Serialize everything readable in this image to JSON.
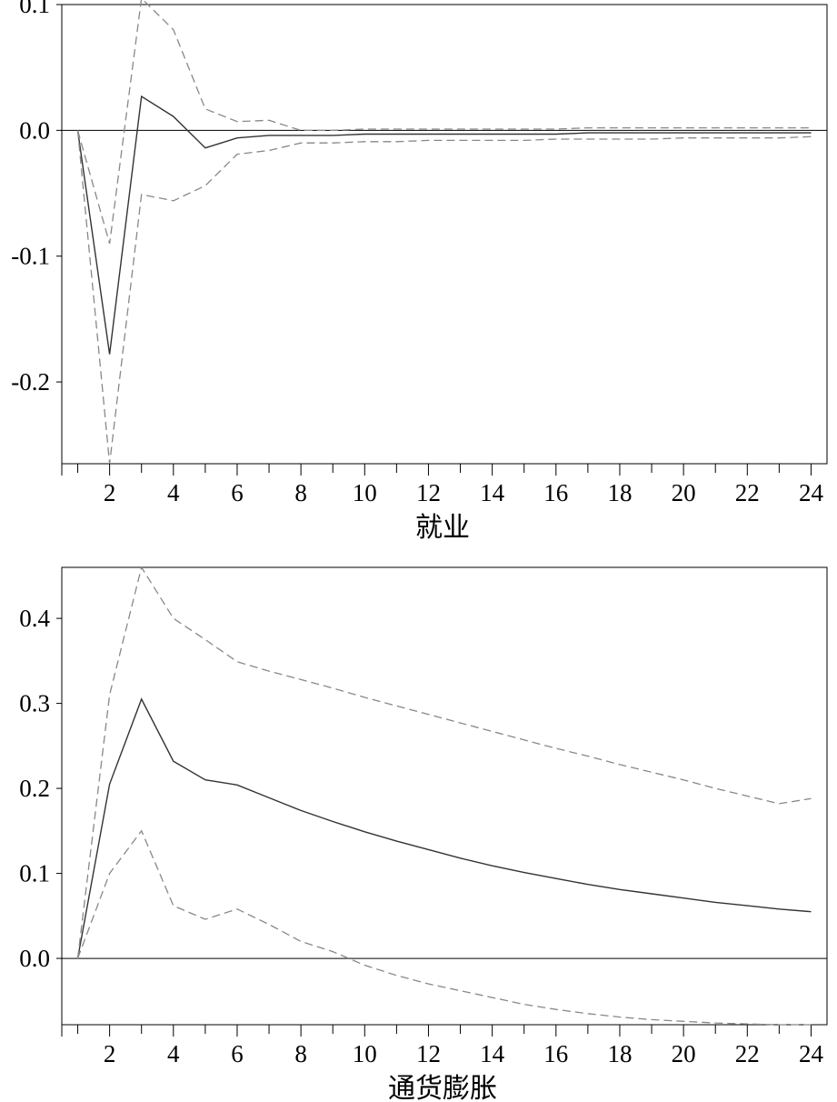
{
  "chart_data": [
    {
      "type": "line",
      "title": "",
      "xlabel": "就业",
      "ylabel": "",
      "xlim": [
        0.5,
        24.5
      ],
      "ylim": [
        -0.265,
        0.1
      ],
      "x_ticks": [
        2,
        4,
        6,
        8,
        10,
        12,
        14,
        16,
        18,
        20,
        22,
        24
      ],
      "y_ticks": [
        0.1,
        0.0,
        -0.1,
        -0.2
      ],
      "y_tick_labels": [
        "0.1",
        "0.0",
        "-0.1",
        "-0.2"
      ],
      "zero_line": true,
      "grid": false,
      "x": [
        1,
        2,
        3,
        4,
        5,
        6,
        7,
        8,
        9,
        10,
        11,
        12,
        13,
        14,
        15,
        16,
        17,
        18,
        19,
        20,
        21,
        22,
        23,
        24
      ],
      "series": [
        {
          "style": "solid",
          "color": "#333333",
          "values": [
            0.0,
            -0.178,
            0.027,
            0.011,
            -0.014,
            -0.006,
            -0.004,
            -0.004,
            -0.004,
            -0.003,
            -0.003,
            -0.003,
            -0.003,
            -0.003,
            -0.003,
            -0.003,
            -0.002,
            -0.002,
            -0.002,
            -0.002,
            -0.002,
            -0.002,
            -0.002,
            -0.002
          ]
        },
        {
          "style": "dashed",
          "color": "#888888",
          "values": [
            0.0,
            -0.09,
            0.105,
            0.08,
            0.017,
            0.007,
            0.008,
            0.0,
            0.0,
            0.001,
            0.001,
            0.001,
            0.001,
            0.001,
            0.001,
            0.001,
            0.002,
            0.002,
            0.002,
            0.002,
            0.002,
            0.002,
            0.002,
            0.002
          ]
        },
        {
          "style": "dashed",
          "color": "#888888",
          "values": [
            0.0,
            -0.265,
            -0.051,
            -0.056,
            -0.044,
            -0.019,
            -0.016,
            -0.01,
            -0.01,
            -0.009,
            -0.009,
            -0.008,
            -0.008,
            -0.008,
            -0.008,
            -0.007,
            -0.007,
            -0.007,
            -0.007,
            -0.006,
            -0.006,
            -0.006,
            -0.006,
            -0.005
          ]
        }
      ]
    },
    {
      "type": "line",
      "title": "",
      "xlabel": "通货膨胀",
      "ylabel": "",
      "xlim": [
        0.5,
        24.5
      ],
      "ylim": [
        -0.078,
        0.46
      ],
      "x_ticks": [
        2,
        4,
        6,
        8,
        10,
        12,
        14,
        16,
        18,
        20,
        22,
        24
      ],
      "y_ticks": [
        0.4,
        0.3,
        0.2,
        0.1,
        0.0
      ],
      "y_tick_labels": [
        "0.4",
        "0.3",
        "0.2",
        "0.1",
        "0.0"
      ],
      "zero_line": true,
      "grid": false,
      "x": [
        1,
        2,
        3,
        4,
        5,
        6,
        7,
        8,
        9,
        10,
        11,
        12,
        13,
        14,
        15,
        16,
        17,
        18,
        19,
        20,
        21,
        22,
        23,
        24
      ],
      "series": [
        {
          "style": "solid",
          "color": "#333333",
          "values": [
            0.0,
            0.205,
            0.305,
            0.232,
            0.21,
            0.204,
            0.189,
            0.174,
            0.161,
            0.149,
            0.138,
            0.128,
            0.118,
            0.109,
            0.101,
            0.094,
            0.087,
            0.081,
            0.076,
            0.071,
            0.066,
            0.062,
            0.058,
            0.055
          ]
        },
        {
          "style": "dashed",
          "color": "#888888",
          "values": [
            0.0,
            0.31,
            0.46,
            0.4,
            0.375,
            0.349,
            0.338,
            0.328,
            0.318,
            0.307,
            0.297,
            0.287,
            0.277,
            0.267,
            0.257,
            0.247,
            0.238,
            0.228,
            0.219,
            0.21,
            0.2,
            0.191,
            0.182,
            0.188
          ]
        },
        {
          "style": "dashed",
          "color": "#888888",
          "values": [
            0.0,
            0.1,
            0.15,
            0.062,
            0.046,
            0.058,
            0.04,
            0.02,
            0.008,
            -0.008,
            -0.02,
            -0.03,
            -0.038,
            -0.046,
            -0.054,
            -0.06,
            -0.065,
            -0.069,
            -0.072,
            -0.074,
            -0.076,
            -0.077,
            -0.078,
            -0.078
          ]
        }
      ]
    }
  ]
}
